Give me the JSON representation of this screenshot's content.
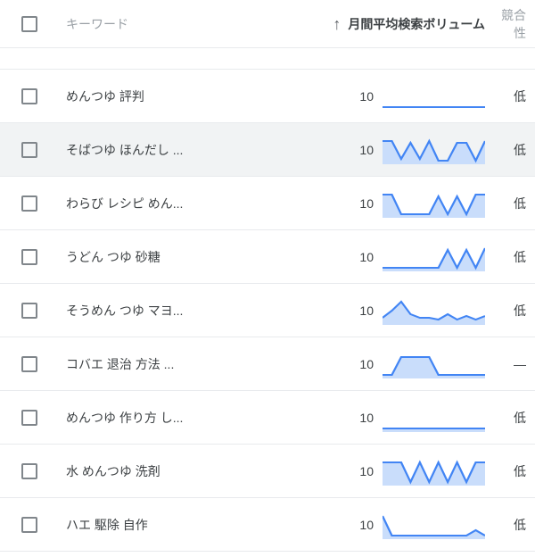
{
  "header": {
    "keyword_label": "キーワード",
    "volume_label": "月間平均検索ボリューム",
    "competition_label": "競合性",
    "sort_arrow": "↑"
  },
  "spark": {
    "line_color": "#4285f4",
    "fill_color": "#c9ddfb",
    "line_width": 2,
    "width": 100,
    "height": 32,
    "ymax": 28,
    "ymin": 4
  },
  "rows": [
    {
      "keyword": "めんつゆ 評判",
      "volume": 10,
      "competition": "低",
      "hover": false,
      "fill": false,
      "spark_y": [
        28,
        28,
        28,
        28,
        28,
        28,
        28,
        28,
        28,
        28,
        28,
        28
      ]
    },
    {
      "keyword": "そばつゆ ほんだし ...",
      "volume": 10,
      "competition": "低",
      "hover": true,
      "fill": true,
      "spark_y": [
        6,
        6,
        26,
        8,
        26,
        6,
        28,
        28,
        8,
        8,
        28,
        6
      ]
    },
    {
      "keyword": "わらび レシピ めん...",
      "volume": 10,
      "competition": "低",
      "hover": false,
      "fill": true,
      "spark_y": [
        6,
        6,
        28,
        28,
        28,
        28,
        8,
        28,
        8,
        28,
        6,
        6
      ]
    },
    {
      "keyword": "うどん つゆ 砂糖",
      "volume": 10,
      "competition": "低",
      "hover": false,
      "fill": true,
      "spark_y": [
        28,
        28,
        28,
        28,
        28,
        28,
        28,
        8,
        28,
        8,
        28,
        6
      ]
    },
    {
      "keyword": "そうめん つゆ マヨ...",
      "volume": 10,
      "competition": "低",
      "hover": false,
      "fill": true,
      "spark_y": [
        24,
        16,
        6,
        20,
        24,
        24,
        26,
        20,
        26,
        22,
        26,
        22
      ]
    },
    {
      "keyword": "コバエ 退治 方法 ...",
      "volume": 10,
      "competition": "—",
      "hover": false,
      "fill": true,
      "spark_y": [
        28,
        28,
        8,
        8,
        8,
        8,
        28,
        28,
        28,
        28,
        28,
        28
      ]
    },
    {
      "keyword": "めんつゆ 作り方 し...",
      "volume": 10,
      "competition": "低",
      "hover": false,
      "fill": true,
      "spark_y": [
        28,
        28,
        28,
        28,
        28,
        28,
        28,
        28,
        28,
        28,
        28,
        28
      ]
    },
    {
      "keyword": "水 めんつゆ 洗剤",
      "volume": 10,
      "competition": "低",
      "hover": false,
      "fill": true,
      "spark_y": [
        6,
        6,
        6,
        28,
        6,
        28,
        6,
        28,
        6,
        28,
        6,
        6
      ]
    },
    {
      "keyword": "ハエ 駆除 自作",
      "volume": 10,
      "competition": "低",
      "hover": false,
      "fill": true,
      "spark_y": [
        6,
        28,
        28,
        28,
        28,
        28,
        28,
        28,
        28,
        28,
        22,
        28
      ]
    }
  ]
}
